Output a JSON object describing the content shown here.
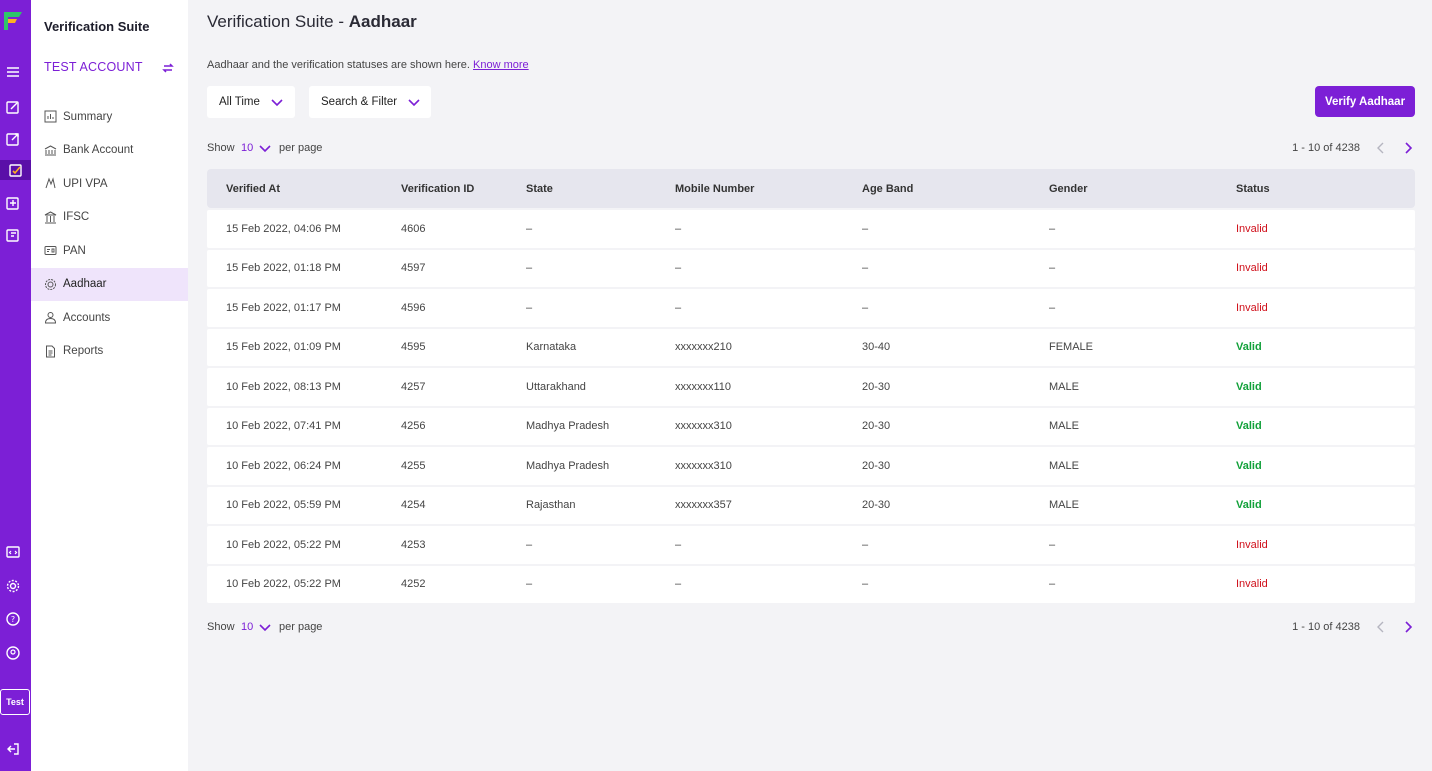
{
  "app": {
    "title": "Verification Suite",
    "account": "TEST ACCOUNT",
    "env_chip": "Test"
  },
  "sidebar": {
    "items": [
      {
        "label": "Summary",
        "icon": "chart-icon"
      },
      {
        "label": "Bank Account",
        "icon": "bank-icon"
      },
      {
        "label": "UPI VPA",
        "icon": "upi-icon"
      },
      {
        "label": "IFSC",
        "icon": "building-icon"
      },
      {
        "label": "PAN",
        "icon": "card-icon"
      },
      {
        "label": "Aadhaar",
        "icon": "fingerprint-icon",
        "active": true
      },
      {
        "label": "Accounts",
        "icon": "user-icon"
      },
      {
        "label": "Reports",
        "icon": "document-icon"
      }
    ]
  },
  "header": {
    "title_prefix": "Verification Suite - ",
    "title_bold": "Aadhaar",
    "description": "Aadhaar and the verification statuses are shown here.",
    "know_more": "Know more"
  },
  "filters": {
    "time": "All Time",
    "search": "Search & Filter"
  },
  "actions": {
    "verify_label": "Verify Aadhaar"
  },
  "pagination": {
    "show": "Show",
    "per_page_value": "10",
    "per_page": "per page",
    "range": "1 - 10 of 4238"
  },
  "table": {
    "columns": [
      "Verified At",
      "Verification ID",
      "State",
      "Mobile Number",
      "Age Band",
      "Gender",
      "Status"
    ],
    "rows": [
      [
        "15 Feb 2022, 04:06 PM",
        "4606",
        "–",
        "–",
        "–",
        "–",
        "Invalid"
      ],
      [
        "15 Feb 2022, 01:18 PM",
        "4597",
        "–",
        "–",
        "–",
        "–",
        "Invalid"
      ],
      [
        "15 Feb 2022, 01:17 PM",
        "4596",
        "–",
        "–",
        "–",
        "–",
        "Invalid"
      ],
      [
        "15 Feb 2022, 01:09 PM",
        "4595",
        "Karnataka",
        "xxxxxxx210",
        "30-40",
        "FEMALE",
        "Valid"
      ],
      [
        "10 Feb 2022, 08:13 PM",
        "4257",
        "Uttarakhand",
        "xxxxxxx110",
        "20-30",
        "MALE",
        "Valid"
      ],
      [
        "10 Feb 2022, 07:41 PM",
        "4256",
        "Madhya Pradesh",
        "xxxxxxx310",
        "20-30",
        "MALE",
        "Valid"
      ],
      [
        "10 Feb 2022, 06:24 PM",
        "4255",
        "Madhya Pradesh",
        "xxxxxxx310",
        "20-30",
        "MALE",
        "Valid"
      ],
      [
        "10 Feb 2022, 05:59 PM",
        "4254",
        "Rajasthan",
        "xxxxxxx357",
        "20-30",
        "MALE",
        "Valid"
      ],
      [
        "10 Feb 2022, 05:22 PM",
        "4253",
        "–",
        "–",
        "–",
        "–",
        "Invalid"
      ],
      [
        "10 Feb 2022, 05:22 PM",
        "4252",
        "–",
        "–",
        "–",
        "–",
        "Invalid"
      ]
    ]
  },
  "colors": {
    "brand": "#7c1fd6",
    "valid": "#12a13a",
    "invalid": "#d0101b"
  }
}
